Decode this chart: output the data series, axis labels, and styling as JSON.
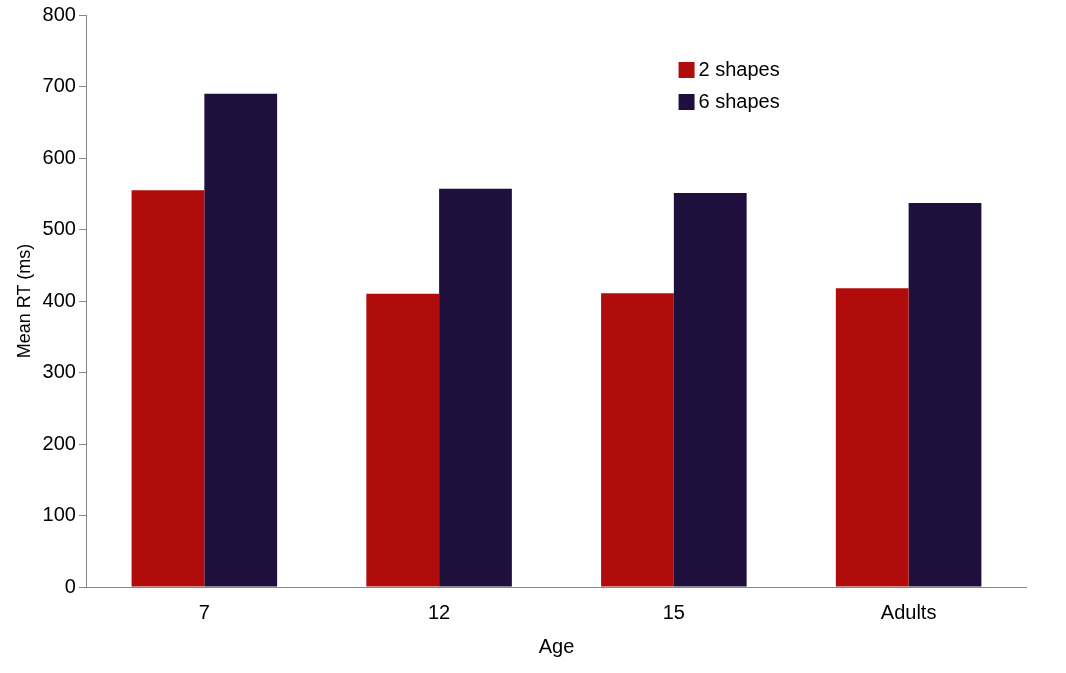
{
  "chart_data": {
    "type": "bar",
    "xlabel": "Age",
    "ylabel": "Mean RT (ms)",
    "categories": [
      "7",
      "12",
      "15",
      "Adults"
    ],
    "series": [
      {
        "name": "2 shapes",
        "color": "#b00c0c",
        "values": [
          555,
          410,
          411,
          418
        ]
      },
      {
        "name": "6 shapes",
        "color": "#1e0f3c",
        "values": [
          690,
          557,
          551,
          537
        ]
      }
    ],
    "ylim": [
      0,
      800
    ],
    "yticks": [
      0,
      100,
      200,
      300,
      400,
      500,
      600,
      700,
      800
    ],
    "grid": false,
    "legend": "top right"
  }
}
